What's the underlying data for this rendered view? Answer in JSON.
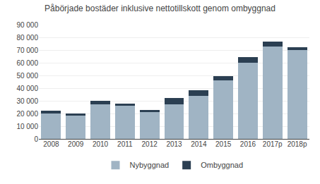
{
  "chart_data": {
    "type": "bar",
    "stacked": true,
    "title": "Påbörjade bostäder inklusive nettotillskott genom ombyggnad",
    "categories": [
      "2008",
      "2009",
      "2010",
      "2011",
      "2012",
      "2013",
      "2014",
      "2015",
      "2016",
      "2017p",
      "2018p"
    ],
    "series": [
      {
        "name": "Nybyggnad",
        "color": "#a0b4c4",
        "values": [
          20000,
          18500,
          27500,
          26000,
          21000,
          27000,
          34000,
          46000,
          60000,
          73000,
          70000
        ]
      },
      {
        "name": "Ombyggnad",
        "color": "#2b3f52",
        "values": [
          2000,
          1500,
          2500,
          2000,
          2000,
          5500,
          4500,
          3500,
          4500,
          3500,
          2500
        ]
      }
    ],
    "ylim": [
      0,
      90000
    ],
    "yticks": [
      0,
      {
        "value": 10000,
        "label": "10 000"
      },
      {
        "value": 20000,
        "label": "20 000"
      },
      {
        "value": 30000,
        "label": "30 000"
      },
      {
        "value": 40000,
        "label": "40 000"
      },
      {
        "value": 50000,
        "label": "50 000"
      },
      {
        "value": 60000,
        "label": "60 000"
      },
      {
        "value": 70000,
        "label": "70 000"
      },
      {
        "value": 80000,
        "label": "80 000"
      },
      {
        "value": 90000,
        "label": "90 000"
      }
    ],
    "grid": true,
    "legend": "bottom"
  }
}
